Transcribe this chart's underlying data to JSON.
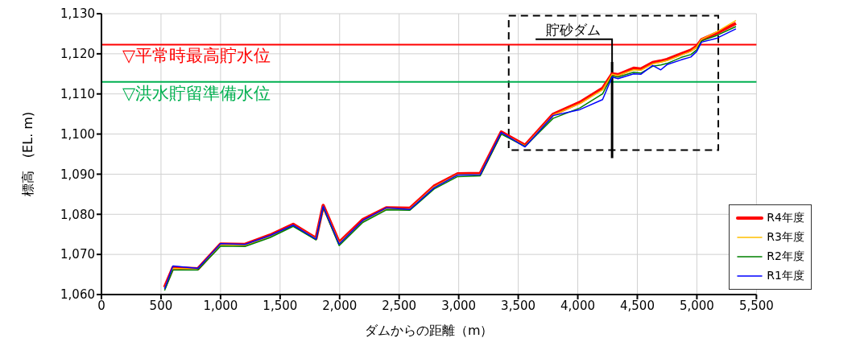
{
  "chart_data": {
    "type": "line",
    "xlabel": "ダムからの距離（m）",
    "ylabel": "標高　(EL. m)",
    "x": [
      530,
      600,
      809,
      1001,
      1205,
      1415,
      1610,
      1802,
      1862,
      1996,
      2196,
      2392,
      2590,
      2793,
      2991,
      3181,
      3357,
      3557,
      3792,
      4018,
      4208,
      4288,
      4338,
      4469,
      4529,
      4629,
      4697,
      4749,
      4869,
      4949,
      4999,
      5039,
      5169,
      5328
    ],
    "series": [
      {
        "name": "R4年度",
        "color": "#ff0000",
        "values": [
          1061.8,
          1066.7,
          1066.4,
          1072.6,
          1072.5,
          1074.8,
          1077.5,
          1074.0,
          1082.2,
          1073.0,
          1078.7,
          1081.6,
          1081.5,
          1087.0,
          1090.1,
          1090.2,
          1100.5,
          1097.2,
          1104.9,
          1107.9,
          1111.4,
          1115.0,
          1114.8,
          1116.4,
          1116.2,
          1117.8,
          1118.2,
          1118.6,
          1120.0,
          1120.9,
          1121.9,
          1123.5,
          1125.2,
          1127.6
        ]
      },
      {
        "name": "R3年度",
        "color": "#ffc000",
        "values": [
          1061.6,
          1066.5,
          1066.3,
          1072.4,
          1072.3,
          1074.6,
          1077.3,
          1073.9,
          1082.0,
          1072.8,
          1078.4,
          1081.4,
          1081.3,
          1086.8,
          1089.9,
          1090.0,
          1100.3,
          1097.0,
          1104.7,
          1107.6,
          1111.0,
          1114.9,
          1114.6,
          1116.0,
          1115.9,
          1117.5,
          1117.9,
          1118.3,
          1119.7,
          1120.6,
          1121.7,
          1123.6,
          1125.5,
          1128.3
        ]
      },
      {
        "name": "R2年度",
        "color": "#008000",
        "values": [
          1061.0,
          1066.1,
          1066.1,
          1072.1,
          1072.0,
          1074.2,
          1077.0,
          1073.6,
          1081.7,
          1072.2,
          1078.0,
          1081.1,
          1081.0,
          1086.3,
          1089.4,
          1089.6,
          1100.0,
          1096.9,
          1103.9,
          1106.5,
          1110.0,
          1114.5,
          1114.2,
          1115.4,
          1115.2,
          1116.9,
          1117.2,
          1117.6,
          1119.1,
          1119.8,
          1121.0,
          1123.2,
          1124.6,
          1126.8
        ]
      },
      {
        "name": "R1年度",
        "color": "#0000ff",
        "values": [
          1061.4,
          1067.1,
          1066.5,
          1072.7,
          1072.5,
          1074.7,
          1077.3,
          1073.8,
          1082.0,
          1072.6,
          1078.5,
          1081.6,
          1081.2,
          1086.6,
          1089.8,
          1089.9,
          1100.4,
          1096.8,
          1104.6,
          1106.1,
          1108.6,
          1114.2,
          1113.8,
          1115.0,
          1114.9,
          1117.1,
          1116.0,
          1117.3,
          1118.5,
          1119.2,
          1120.6,
          1122.9,
          1123.9,
          1126.2
        ]
      }
    ],
    "xlim": [
      0,
      5500
    ],
    "xticks": [
      0,
      500,
      {
        "value": 1000,
        "label": "1,000"
      },
      {
        "value": 1500,
        "label": "1,500"
      },
      {
        "value": 2000,
        "label": "2,000"
      },
      {
        "value": 2500,
        "label": "2,500"
      },
      {
        "value": 3000,
        "label": "3,000"
      },
      {
        "value": 3500,
        "label": "3,500"
      },
      {
        "value": 4000,
        "label": "4,000"
      },
      {
        "value": 4500,
        "label": "4,500"
      },
      {
        "value": 5000,
        "label": "5,000"
      },
      {
        "value": 5500,
        "label": "5,500"
      }
    ],
    "ylim": [
      1060,
      1130
    ],
    "yticks": [
      {
        "value": 1060,
        "label": "1,060"
      },
      {
        "value": 1070,
        "label": "1,070"
      },
      {
        "value": 1080,
        "label": "1,080"
      },
      {
        "value": 1090,
        "label": "1,090"
      },
      {
        "value": 1100,
        "label": "1,100"
      },
      {
        "value": 1110,
        "label": "1,110"
      },
      {
        "value": 1120,
        "label": "1,120"
      },
      {
        "value": 1130,
        "label": "1,130"
      }
    ],
    "grid": true,
    "legend": "bottom right",
    "marker": "none",
    "line_style": "solid",
    "ref_lines": [
      {
        "axis": "y",
        "value": 1122.3,
        "label": "▽平常時最高貯水位",
        "color": "#ff0000"
      },
      {
        "axis": "y",
        "value": 1113,
        "label": "▽洪水貯留準備水位",
        "color": "#00b050"
      },
      {
        "axis": "x",
        "value": 4288,
        "color": "#000000"
      }
    ],
    "annotations": [
      {
        "text": "貯砂ダム",
        "x": 4288,
        "y": 1115
      }
    ]
  }
}
